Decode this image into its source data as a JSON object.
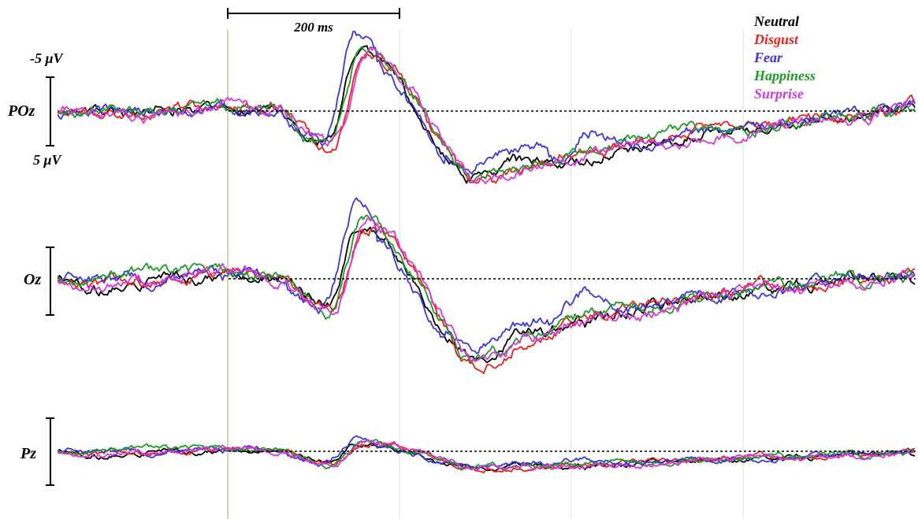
{
  "chart_data": {
    "type": "line",
    "scale_bar_time": "200 ms",
    "scale_bar_top": "-5 μV",
    "scale_bar_bottom": "5 μV",
    "x_unit": "ms",
    "xlim": [
      -200,
      800
    ],
    "y_unit": "μV",
    "y_axis_inverted": true,
    "grid_vertical_ms": [
      0,
      200,
      400,
      600
    ],
    "baseline_dotted": true,
    "legend_position": "top-right",
    "panels": [
      {
        "label": "POz",
        "amp_scale": 1.0,
        "peaks": [
          [
            -120,
            0.3
          ],
          [
            -10,
            -0.6
          ],
          [
            45,
            -0.3
          ],
          [
            115,
            5.2
          ],
          [
            155,
            -10
          ],
          [
            290,
            11
          ],
          [
            350,
            8.5
          ],
          [
            410,
            8
          ],
          [
            480,
            5.5
          ],
          [
            560,
            3.5
          ],
          [
            650,
            2
          ],
          [
            730,
            0.8
          ],
          [
            800,
            -1
          ]
        ]
      },
      {
        "label": "Oz",
        "amp_scale": 1.05,
        "peaks": [
          [
            -120,
            0.3
          ],
          [
            -10,
            -0.9
          ],
          [
            45,
            -0.4
          ],
          [
            115,
            4.5
          ],
          [
            155,
            -9
          ],
          [
            290,
            12.5
          ],
          [
            350,
            8.8
          ],
          [
            410,
            6.2
          ],
          [
            480,
            4.8
          ],
          [
            560,
            2.8
          ],
          [
            650,
            1.2
          ],
          [
            730,
            0
          ],
          [
            800,
            -1
          ]
        ]
      },
      {
        "label": "Pz",
        "amp_scale": 0.5,
        "peaks": [
          [
            -120,
            0.3
          ],
          [
            -10,
            -0.5
          ],
          [
            45,
            -0.5
          ],
          [
            115,
            4
          ],
          [
            155,
            -3
          ],
          [
            290,
            5.2
          ],
          [
            350,
            4.8
          ],
          [
            410,
            4.6
          ],
          [
            480,
            3.9
          ],
          [
            560,
            2.9
          ],
          [
            650,
            2
          ],
          [
            730,
            1
          ],
          [
            800,
            -0.3
          ]
        ]
      }
    ],
    "series": [
      {
        "name": "Neutral",
        "color": "#000000",
        "seed": 11,
        "shift": 0,
        "dip": 1.0,
        "pk": 1.0,
        "late": 1.0,
        "bump": 0
      },
      {
        "name": "Disgust",
        "color": "#e8231e",
        "seed": 23,
        "shift": 6,
        "dip": 0.95,
        "pk": 1.12,
        "late": 1.1,
        "bump": 0.3
      },
      {
        "name": "Fear",
        "color": "#3a37d6",
        "seed": 37,
        "shift": -6,
        "dip": 1.3,
        "pk": 0.97,
        "late": 0.82,
        "bump": 4.2
      },
      {
        "name": "Happiness",
        "color": "#1f9a2a",
        "seed": 41,
        "shift": 3,
        "dip": 1.1,
        "pk": 1.2,
        "late": 1.05,
        "bump": 0.6
      },
      {
        "name": "Surprise",
        "color": "#d33ad6",
        "seed": 53,
        "shift": 9,
        "dip": 1.0,
        "pk": 1.0,
        "late": 1.02,
        "bump": 0.2
      }
    ]
  }
}
